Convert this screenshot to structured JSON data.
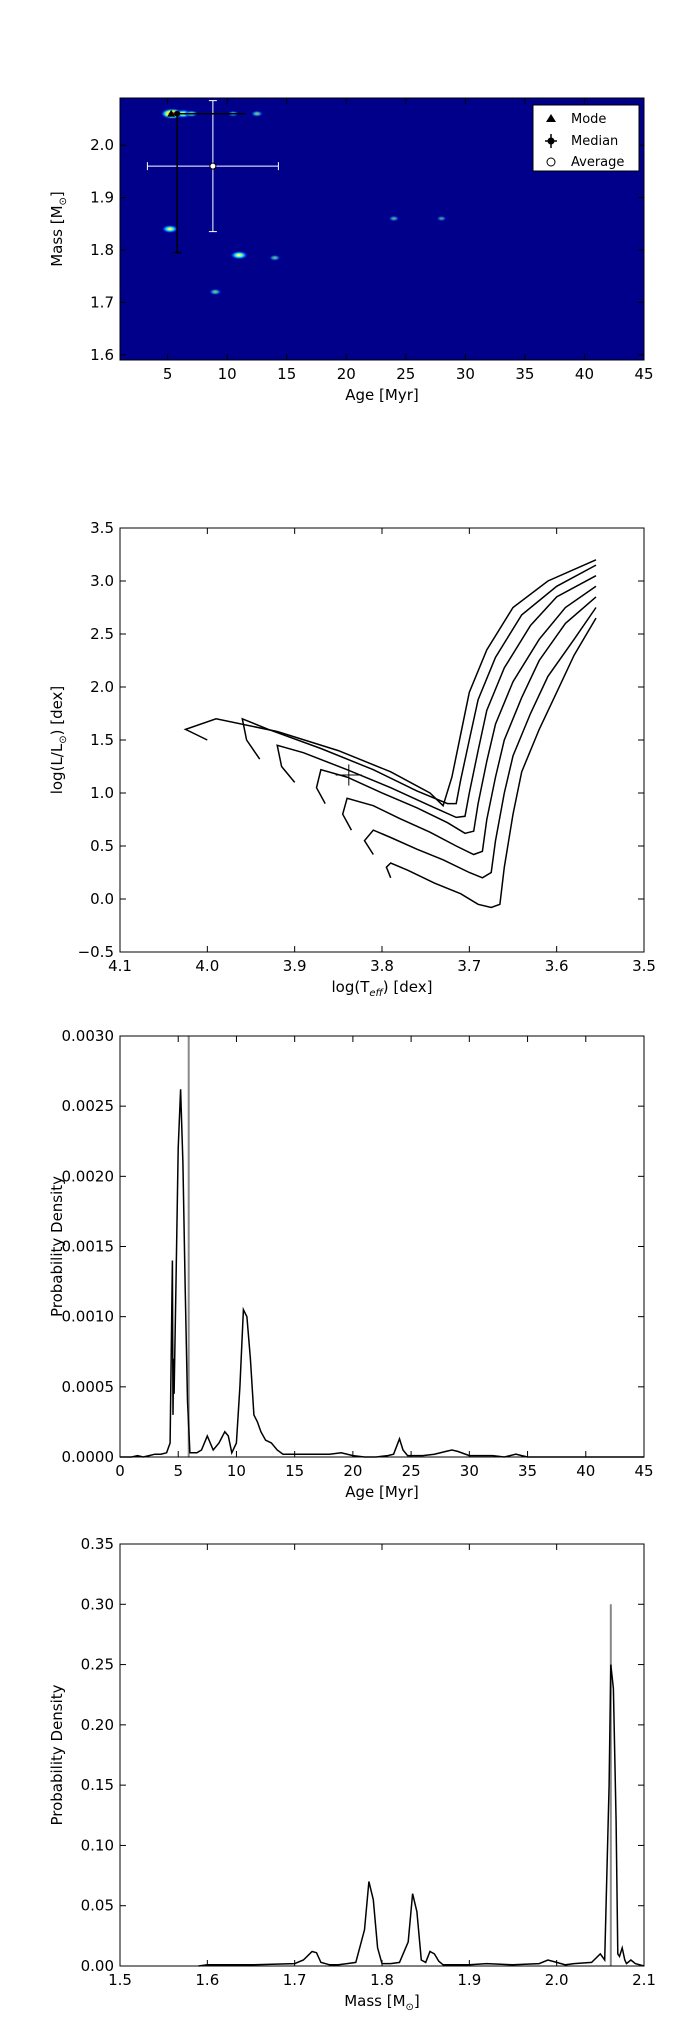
{
  "chart_data": [
    {
      "type": "heatmap",
      "xlabel": "Age [Myr]",
      "ylabel": "Mass [M",
      "ylabel_sub": "⊙",
      "ylabel_end": "]",
      "xlim": [
        1,
        45
      ],
      "ylim": [
        1.59,
        2.09
      ],
      "xticks": [
        5,
        10,
        15,
        20,
        25,
        30,
        35,
        40,
        45
      ],
      "yticks": [
        1.6,
        1.7,
        1.8,
        1.9,
        2.0
      ],
      "background_color": "#00008b",
      "legend": {
        "position": "top-right",
        "entries": [
          "Mode",
          "Median",
          "Average"
        ]
      },
      "blobs": [
        {
          "x": 5.4,
          "y": 2.06,
          "intensity": 1.0
        },
        {
          "x": 6.3,
          "y": 2.06,
          "intensity": 0.7
        },
        {
          "x": 7.0,
          "y": 2.06,
          "intensity": 0.4
        },
        {
          "x": 10.5,
          "y": 2.06,
          "intensity": 0.25
        },
        {
          "x": 12.5,
          "y": 2.06,
          "intensity": 0.3
        },
        {
          "x": 5.2,
          "y": 1.84,
          "intensity": 0.6
        },
        {
          "x": 11.0,
          "y": 1.79,
          "intensity": 0.65
        },
        {
          "x": 14.0,
          "y": 1.785,
          "intensity": 0.25
        },
        {
          "x": 9.0,
          "y": 1.72,
          "intensity": 0.3
        },
        {
          "x": 24.0,
          "y": 1.86,
          "intensity": 0.2
        },
        {
          "x": 28.0,
          "y": 1.86,
          "intensity": 0.15
        }
      ],
      "mode": {
        "x": 5.3,
        "y": 2.06
      },
      "median": {
        "x": 5.8,
        "y": 2.06,
        "yerr_low": 1.795,
        "yerr_high": 2.06
      },
      "average": {
        "x": 8.8,
        "y": 1.96,
        "xerr_low": 3.3,
        "xerr_high": 14.3,
        "yerr_low": 1.835,
        "yerr_high": 2.085
      }
    },
    {
      "type": "line",
      "xlabel": "log(T",
      "xlabel_sub": "eff",
      "xlabel_end": ") [dex]",
      "ylabel": "log(L/L",
      "ylabel_sub": "⊙",
      "ylabel_end": ") [dex]",
      "xlim": [
        4.1,
        3.5
      ],
      "ylim": [
        -0.5,
        3.5
      ],
      "xticks": [
        4.1,
        4.0,
        3.9,
        3.8,
        3.7,
        3.6,
        3.5
      ],
      "yticks": [
        -0.5,
        0.0,
        0.5,
        1.0,
        1.5,
        2.0,
        2.5,
        3.0,
        3.5
      ],
      "series": [
        {
          "x": [
            3.79,
            3.795,
            3.79,
            3.77,
            3.74,
            3.71,
            3.69,
            3.675,
            3.665,
            3.66,
            3.65,
            3.64,
            3.62,
            3.6,
            3.58,
            3.555
          ],
          "y": [
            0.2,
            0.3,
            0.34,
            0.27,
            0.15,
            0.05,
            -0.05,
            -0.08,
            -0.05,
            0.3,
            0.8,
            1.2,
            1.6,
            1.95,
            2.3,
            2.65
          ]
        },
        {
          "x": [
            3.81,
            3.82,
            3.81,
            3.79,
            3.76,
            3.73,
            3.7,
            3.685,
            3.675,
            3.67,
            3.66,
            3.65,
            3.63,
            3.61,
            3.58,
            3.555
          ],
          "y": [
            0.42,
            0.55,
            0.65,
            0.58,
            0.47,
            0.37,
            0.25,
            0.2,
            0.25,
            0.55,
            1.0,
            1.35,
            1.75,
            2.1,
            2.45,
            2.75
          ]
        },
        {
          "x": [
            3.835,
            3.845,
            3.84,
            3.81,
            3.78,
            3.745,
            3.715,
            3.695,
            3.685,
            3.68,
            3.67,
            3.66,
            3.64,
            3.62,
            3.59,
            3.555
          ],
          "y": [
            0.65,
            0.8,
            0.95,
            0.88,
            0.76,
            0.63,
            0.5,
            0.42,
            0.45,
            0.75,
            1.15,
            1.5,
            1.9,
            2.25,
            2.6,
            2.85
          ]
        },
        {
          "x": [
            3.865,
            3.875,
            3.87,
            3.84,
            3.8,
            3.76,
            3.725,
            3.705,
            3.695,
            3.69,
            3.68,
            3.67,
            3.65,
            3.62,
            3.59,
            3.555
          ],
          "y": [
            0.9,
            1.05,
            1.22,
            1.15,
            1.0,
            0.86,
            0.72,
            0.62,
            0.64,
            0.9,
            1.3,
            1.65,
            2.05,
            2.45,
            2.75,
            2.95
          ]
        },
        {
          "x": [
            3.9,
            3.915,
            3.92,
            3.89,
            3.84,
            3.79,
            3.745,
            3.715,
            3.705,
            3.7,
            3.69,
            3.68,
            3.66,
            3.63,
            3.6,
            3.555
          ],
          "y": [
            1.1,
            1.25,
            1.45,
            1.38,
            1.22,
            1.05,
            0.88,
            0.77,
            0.78,
            1.0,
            1.4,
            1.78,
            2.18,
            2.58,
            2.85,
            3.05
          ]
        },
        {
          "x": [
            3.94,
            3.955,
            3.96,
            3.93,
            3.87,
            3.81,
            3.76,
            3.725,
            3.715,
            3.71,
            3.7,
            3.69,
            3.67,
            3.64,
            3.6,
            3.555
          ],
          "y": [
            1.32,
            1.5,
            1.7,
            1.6,
            1.42,
            1.22,
            1.02,
            0.9,
            0.9,
            1.12,
            1.5,
            1.88,
            2.28,
            2.68,
            2.95,
            3.15
          ]
        },
        {
          "x": [
            4.0,
            4.02,
            4.025,
            3.99,
            3.92,
            3.85,
            3.79,
            3.745,
            3.73,
            3.72,
            3.71,
            3.7,
            3.68,
            3.65,
            3.61,
            3.555
          ],
          "y": [
            1.5,
            1.58,
            1.6,
            1.7,
            1.58,
            1.4,
            1.2,
            1.0,
            0.88,
            1.15,
            1.55,
            1.95,
            2.35,
            2.75,
            3.0,
            3.2
          ]
        }
      ],
      "star": {
        "x": 3.838,
        "y": 1.17,
        "xerr": 0.015,
        "yerr": 0.1
      }
    },
    {
      "type": "line",
      "xlabel": "Age [Myr]",
      "ylabel": "Probability Density",
      "xlim": [
        0,
        45
      ],
      "ylim": [
        0,
        0.003
      ],
      "xticks": [
        0,
        5,
        10,
        15,
        20,
        25,
        30,
        35,
        40,
        45
      ],
      "yticks": [
        0.0,
        0.0005,
        0.001,
        0.0015,
        0.002,
        0.0025,
        0.003
      ],
      "ytick_labels": [
        "0.0000",
        "0.0005",
        "0.0010",
        "0.0015",
        "0.0020",
        "0.0025",
        "0.0030"
      ],
      "vline": 5.9,
      "series": [
        {
          "x": [
            0,
            1.0,
            1.5,
            2.0,
            2.5,
            3.0,
            3.5,
            4.0,
            4.3,
            4.5,
            4.55,
            4.6,
            4.65,
            4.8,
            5.0,
            5.2,
            5.4,
            5.6,
            5.8,
            6.0,
            6.3,
            6.6,
            7.0,
            7.5,
            8.0,
            8.5,
            9.0,
            9.3,
            9.6,
            10.0,
            10.3,
            10.6,
            10.9,
            11.2,
            11.5,
            11.8,
            12.1,
            12.5,
            13.0,
            13.5,
            14.0,
            14.5,
            15.0,
            16.0,
            17.0,
            18.0,
            19.0,
            20.0,
            21.0,
            22.0,
            23.0,
            23.5,
            24.0,
            24.3,
            24.7,
            25.0,
            26.0,
            27.0,
            28.0,
            28.5,
            29.0,
            30.0,
            31.0,
            32.0,
            33.0,
            34.0,
            34.5,
            35.0,
            36.0,
            38.0,
            40.0,
            42.0,
            45.0
          ],
          "y": [
            0,
            0,
            1e-05,
            0,
            1e-05,
            2e-05,
            2e-05,
            3e-05,
            0.0001,
            0.0014,
            0.0003,
            0.0007,
            0.00045,
            0.0012,
            0.0022,
            0.00262,
            0.0021,
            0.0012,
            0.0004,
            3e-05,
            3e-05,
            3e-05,
            5e-05,
            0.00015,
            5e-05,
            0.0001,
            0.00018,
            0.00015,
            3e-05,
            0.0001,
            0.0005,
            0.00105,
            0.001,
            0.0007,
            0.0003,
            0.00025,
            0.00018,
            0.00012,
            0.0001,
            5e-05,
            2e-05,
            2e-05,
            2e-05,
            2e-05,
            2e-05,
            2e-05,
            3e-05,
            1e-05,
            0,
            0,
            1e-05,
            2e-05,
            0.00013,
            5e-05,
            1e-05,
            1e-05,
            1e-05,
            2e-05,
            4e-05,
            5e-05,
            4e-05,
            1e-05,
            1e-05,
            1e-05,
            0,
            2e-05,
            1e-05,
            0,
            0,
            0,
            0,
            0,
            0
          ]
        }
      ]
    },
    {
      "type": "line",
      "xlabel": "Mass [M",
      "xlabel_sub": "⊙",
      "xlabel_end": "]",
      "ylabel": "Probability Density",
      "xlim": [
        1.5,
        2.1
      ],
      "ylim": [
        0,
        0.35
      ],
      "xticks": [
        1.5,
        1.6,
        1.7,
        1.8,
        1.9,
        2.0,
        2.1
      ],
      "xtick_labels": [
        "1.5",
        "1.6",
        "1.7",
        "1.8",
        "1.9",
        "2.0",
        "2.1"
      ],
      "yticks": [
        0.0,
        0.05,
        0.1,
        0.15,
        0.2,
        0.25,
        0.3,
        0.35
      ],
      "ytick_labels": [
        "0.00",
        "0.05",
        "0.10",
        "0.15",
        "0.20",
        "0.25",
        "0.30",
        "0.35"
      ],
      "vline": 2.062,
      "series": [
        {
          "x": [
            1.59,
            1.6,
            1.65,
            1.7,
            1.71,
            1.72,
            1.725,
            1.73,
            1.74,
            1.75,
            1.76,
            1.77,
            1.78,
            1.785,
            1.79,
            1.795,
            1.8,
            1.81,
            1.82,
            1.83,
            1.835,
            1.84,
            1.845,
            1.85,
            1.855,
            1.86,
            1.865,
            1.87,
            1.88,
            1.9,
            1.92,
            1.95,
            1.98,
            1.99,
            2.0,
            2.01,
            2.02,
            2.04,
            2.05,
            2.055,
            2.06,
            2.062,
            2.065,
            2.068,
            2.07,
            2.072,
            2.075,
            2.078,
            2.08,
            2.085,
            2.09,
            2.1
          ],
          "y": [
            0,
            0.001,
            0.001,
            0.002,
            0.005,
            0.012,
            0.011,
            0.003,
            0.001,
            0.001,
            0.002,
            0.003,
            0.03,
            0.07,
            0.055,
            0.015,
            0.002,
            0.002,
            0.003,
            0.02,
            0.06,
            0.045,
            0.005,
            0.003,
            0.012,
            0.01,
            0.004,
            0.001,
            0.001,
            0.001,
            0.002,
            0.001,
            0.002,
            0.005,
            0.003,
            0.001,
            0.002,
            0.003,
            0.01,
            0.005,
            0.15,
            0.25,
            0.23,
            0.12,
            0.01,
            0.008,
            0.015,
            0.005,
            0.002,
            0.005,
            0.002,
            0
          ]
        }
      ]
    }
  ]
}
